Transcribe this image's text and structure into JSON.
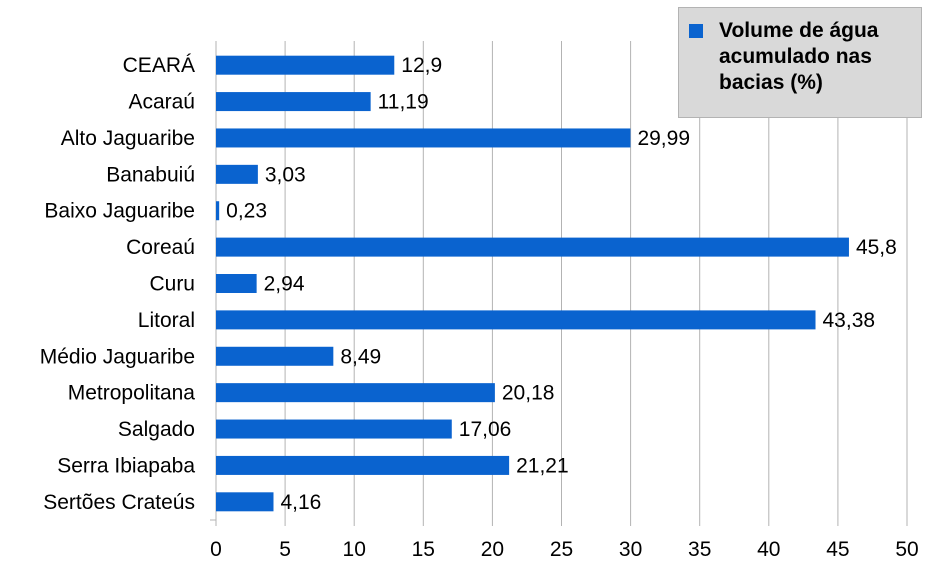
{
  "chart_data": {
    "type": "bar",
    "orientation": "horizontal",
    "categories": [
      "CEARÁ",
      "Acaraú",
      "Alto Jaguaribe",
      "Banabuiú",
      "Baixo Jaguaribe",
      "Coreaú",
      "Curu",
      "Litoral",
      "Médio Jaguaribe",
      "Metropolitana",
      "Salgado",
      "Serra Ibiapaba",
      "Sertões Crateús"
    ],
    "series": [
      {
        "name": "Volume de água acumulado nas bacias (%)",
        "values": [
          12.9,
          11.19,
          29.99,
          3.03,
          0.23,
          45.8,
          2.94,
          43.38,
          8.49,
          20.18,
          17.06,
          21.21,
          4.16
        ],
        "labels": [
          "12,9",
          "11,19",
          "29,99",
          "3,03",
          "0,23",
          "45,8",
          "2,94",
          "43,38",
          "8,49",
          "20,18",
          "17,06",
          "21,21",
          "4,16"
        ],
        "color": "#0a63cf"
      }
    ],
    "xlim": [
      0,
      50
    ],
    "xticks": [
      0,
      5,
      10,
      15,
      20,
      25,
      30,
      35,
      40,
      45,
      50
    ],
    "grid": "vertical",
    "legend_position": "top-right",
    "title": "",
    "xlabel": "",
    "ylabel": ""
  },
  "colors": {
    "bar": "#0a63cf",
    "grid": "#b3b3b3",
    "legend_bg": "#d9d9d9"
  },
  "legend": {
    "label": "Volume de água acumulado nas bacias (%)"
  }
}
